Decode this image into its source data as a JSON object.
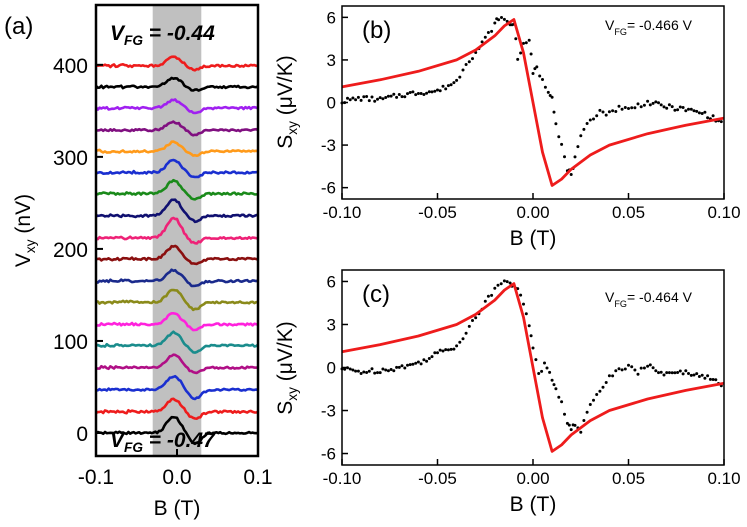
{
  "figure": {
    "colors": {
      "fit": "#ee1c1c",
      "data": "#000000",
      "shade": "#c0c0c0"
    }
  },
  "chart_data": [
    {
      "panel": "(a)",
      "type": "line",
      "xlabel": "B (T)",
      "ylabel": "V",
      "ylabel_sub": "xy",
      "ylabel_unit": " (nV)",
      "xlim": [
        -0.1,
        0.1
      ],
      "ylim": [
        -25,
        465
      ],
      "xticks": [
        -0.1,
        0.0,
        0.1
      ],
      "xtick_labels": [
        "-0.1",
        "0.0",
        "0.1"
      ],
      "yticks": [
        0,
        100,
        200,
        300,
        400
      ],
      "ytick_labels": [
        "0",
        "100",
        "200",
        "300",
        "400"
      ],
      "shaded_region": [
        -0.03,
        0.03
      ],
      "annotation_top": {
        "prefix": "V",
        "sub": "FG",
        "value": " = -0.44"
      },
      "annotation_bottom": {
        "prefix": "V",
        "sub": "FG",
        "value": " = -0.47"
      },
      "trace_offset_step": 23.5,
      "series": [
        {
          "color": "#000000",
          "baseline": 0,
          "peak": 18,
          "dip": -12
        },
        {
          "color": "#ee1c1c",
          "baseline": 23,
          "peak": 14,
          "dip": -8
        },
        {
          "color": "#1a2fd0",
          "baseline": 47,
          "peak": 15,
          "dip": -10
        },
        {
          "color": "#b00f86",
          "baseline": 71,
          "peak": 14,
          "dip": -6
        },
        {
          "color": "#1a8c8c",
          "baseline": 95,
          "peak": 14,
          "dip": -8
        },
        {
          "color": "#ff22dd",
          "baseline": 118,
          "peak": 12,
          "dip": -6
        },
        {
          "color": "#8a8a1a",
          "baseline": 142,
          "peak": 14,
          "dip": -8
        },
        {
          "color": "#1a2a8c",
          "baseline": 165,
          "peak": 12,
          "dip": -6
        },
        {
          "color": "#8a0f0f",
          "baseline": 189,
          "peak": 14,
          "dip": -5
        },
        {
          "color": "#ee2277",
          "baseline": 212,
          "peak": 22,
          "dip": -6
        },
        {
          "color": "#101070",
          "baseline": 236,
          "peak": 18,
          "dip": -6
        },
        {
          "color": "#1a8a1a",
          "baseline": 260,
          "peak": 14,
          "dip": -6
        },
        {
          "color": "#1a2fd0",
          "baseline": 283,
          "peak": 14,
          "dip": -5
        },
        {
          "color": "#ff9a1a",
          "baseline": 306,
          "peak": 10,
          "dip": -5
        },
        {
          "color": "#800f80",
          "baseline": 329,
          "peak": 9,
          "dip": -5
        },
        {
          "color": "#a020f0",
          "baseline": 353,
          "peak": 9,
          "dip": -5
        },
        {
          "color": "#000000",
          "baseline": 376,
          "peak": 10,
          "dip": -4
        },
        {
          "color": "#ee1c1c",
          "baseline": 399,
          "peak": 10,
          "dip": -4
        }
      ]
    },
    {
      "panel": "(b)",
      "type": "scatter",
      "xlabel": "B (T)",
      "ylabel": "S",
      "ylabel_sub": "xy",
      "ylabel_unit": " (μV/K)",
      "xlim": [
        -0.1,
        0.1
      ],
      "ylim": [
        -6.8,
        6.8
      ],
      "xticks": [
        -0.1,
        -0.05,
        0.0,
        0.05,
        0.1
      ],
      "xtick_labels": [
        "-0.10",
        "-0.05",
        "0.00",
        "0.05",
        "0.10"
      ],
      "yticks": [
        -6,
        -3,
        0,
        3,
        6
      ],
      "ytick_labels": [
        "-6",
        "-3",
        "0",
        "3",
        "6"
      ],
      "annotation": {
        "prefix": "V",
        "sub": "FG",
        "value": "= -0.466 V"
      },
      "data_points": {
        "x": [
          -0.1,
          -0.09,
          -0.08,
          -0.07,
          -0.06,
          -0.05,
          -0.04,
          -0.035,
          -0.03,
          -0.025,
          -0.02,
          -0.018,
          -0.015,
          -0.012,
          -0.01,
          -0.008,
          -0.005,
          -0.002,
          0.0,
          0.002,
          0.005,
          0.008,
          0.01,
          0.012,
          0.015,
          0.018,
          0.02,
          0.022,
          0.025,
          0.03,
          0.035,
          0.04,
          0.045,
          0.05,
          0.055,
          0.06,
          0.07,
          0.08,
          0.09,
          0.1
        ],
        "y": [
          0.1,
          0.3,
          0.2,
          0.5,
          0.7,
          0.8,
          1.5,
          2.8,
          3.5,
          4.5,
          5.5,
          6.0,
          5.8,
          5.5,
          5.6,
          3.2,
          4.0,
          4.5,
          2.0,
          2.5,
          1.5,
          0.8,
          0.5,
          -1.5,
          -3.0,
          -4.8,
          -5.0,
          -4.0,
          -2.5,
          -1.2,
          -0.6,
          -0.8,
          -0.3,
          -0.5,
          -0.2,
          0.0,
          -0.3,
          -0.5,
          -0.8,
          -1.5
        ]
      },
      "fit": {
        "x": [
          -0.1,
          -0.08,
          -0.06,
          -0.04,
          -0.03,
          -0.02,
          -0.015,
          -0.01,
          -0.005,
          0.0,
          0.005,
          0.01,
          0.015,
          0.02,
          0.03,
          0.04,
          0.06,
          0.08,
          0.1
        ],
        "y": [
          1.1,
          1.6,
          2.2,
          3.0,
          3.7,
          4.7,
          5.4,
          5.85,
          3.5,
          0.0,
          -3.5,
          -5.85,
          -5.4,
          -4.7,
          -3.7,
          -3.0,
          -2.2,
          -1.6,
          -1.1
        ]
      }
    },
    {
      "panel": "(c)",
      "type": "scatter",
      "xlabel": "B (T)",
      "ylabel": "S",
      "ylabel_sub": "xy",
      "ylabel_unit": " (μV/K)",
      "xlim": [
        -0.1,
        0.1
      ],
      "ylim": [
        -6.8,
        6.8
      ],
      "xticks": [
        -0.1,
        -0.05,
        0.0,
        0.05,
        0.1
      ],
      "xtick_labels": [
        "-0.10",
        "-0.05",
        "0.00",
        "0.05",
        "0.10"
      ],
      "yticks": [
        -6,
        -3,
        0,
        3,
        6
      ],
      "ytick_labels": [
        "-6",
        "-3",
        "0",
        "3",
        "6"
      ],
      "annotation": {
        "prefix": "V",
        "sub": "FG",
        "value": "= -0.464 V"
      },
      "data_points": {
        "x": [
          -0.1,
          -0.09,
          -0.08,
          -0.07,
          -0.06,
          -0.05,
          -0.04,
          -0.035,
          -0.03,
          -0.025,
          -0.02,
          -0.015,
          -0.012,
          -0.01,
          -0.008,
          -0.005,
          -0.002,
          0.0,
          0.003,
          0.006,
          0.01,
          0.012,
          0.015,
          0.018,
          0.02,
          0.022,
          0.025,
          0.03,
          0.035,
          0.04,
          0.045,
          0.05,
          0.055,
          0.06,
          0.07,
          0.08,
          0.09,
          0.1
        ],
        "y": [
          -0.1,
          -0.3,
          -0.2,
          0.0,
          0.3,
          1.0,
          1.5,
          2.5,
          3.5,
          4.5,
          5.5,
          6.2,
          6.0,
          5.6,
          5.4,
          4.5,
          3.0,
          1.5,
          -0.5,
          0.2,
          -0.8,
          -1.5,
          -2.5,
          -3.8,
          -4.3,
          -4.0,
          -4.5,
          -2.5,
          -1.5,
          -0.6,
          -0.2,
          0.2,
          -0.3,
          0.1,
          -0.5,
          -0.3,
          -0.6,
          -1.3
        ]
      },
      "fit": {
        "x": [
          -0.1,
          -0.08,
          -0.06,
          -0.04,
          -0.03,
          -0.02,
          -0.015,
          -0.01,
          -0.005,
          0.0,
          0.005,
          0.01,
          0.015,
          0.02,
          0.03,
          0.04,
          0.06,
          0.08,
          0.1
        ],
        "y": [
          1.1,
          1.6,
          2.2,
          3.0,
          3.7,
          4.7,
          5.4,
          5.85,
          3.5,
          0.0,
          -3.5,
          -5.85,
          -5.4,
          -4.7,
          -3.7,
          -3.0,
          -2.2,
          -1.6,
          -1.1
        ]
      }
    }
  ]
}
